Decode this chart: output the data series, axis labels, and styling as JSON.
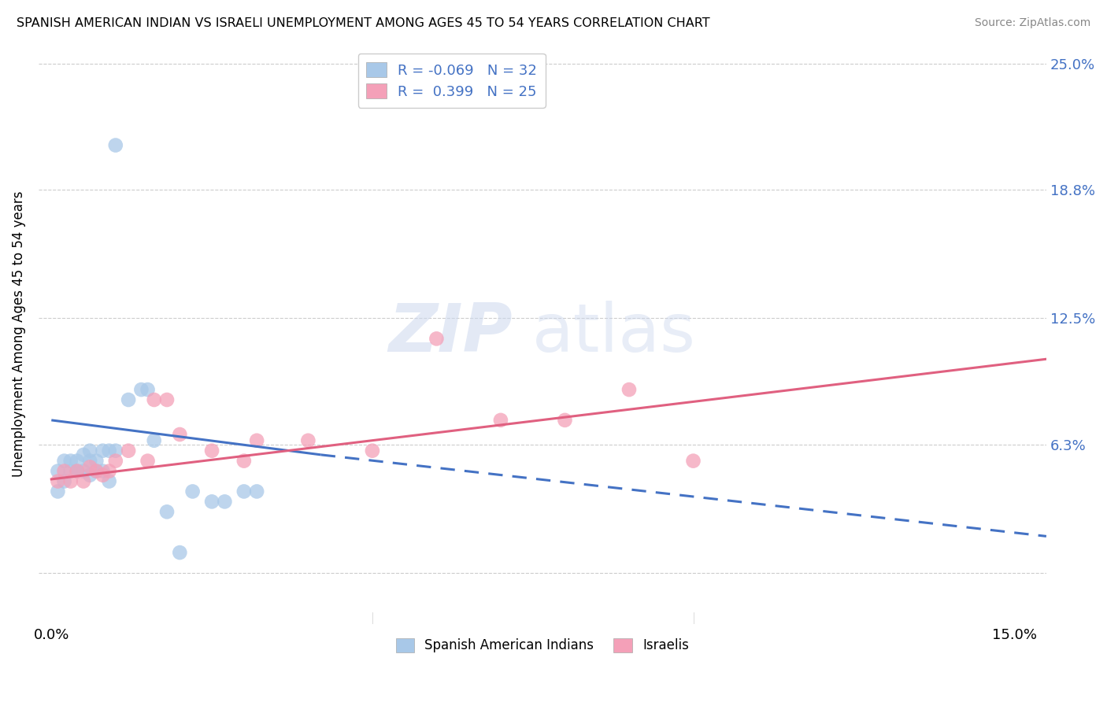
{
  "title": "SPANISH AMERICAN INDIAN VS ISRAELI UNEMPLOYMENT AMONG AGES 45 TO 54 YEARS CORRELATION CHART",
  "source": "Source: ZipAtlas.com",
  "ylabel": "Unemployment Among Ages 45 to 54 years",
  "xlim": [
    -0.002,
    0.155
  ],
  "ylim": [
    -0.025,
    0.26
  ],
  "ytick_labels": [
    "",
    "6.3%",
    "12.5%",
    "18.8%",
    "25.0%"
  ],
  "ytick_values": [
    0.0,
    0.063,
    0.125,
    0.188,
    0.25
  ],
  "r_blue": -0.069,
  "n_blue": 32,
  "r_pink": 0.399,
  "n_pink": 25,
  "blue_color": "#a8c8e8",
  "pink_color": "#f4a0b8",
  "blue_line_color": "#4472c4",
  "pink_line_color": "#e06080",
  "legend_label_blue": "Spanish American Indians",
  "legend_label_pink": "Israelis",
  "blue_scatter_size": 180,
  "pink_scatter_size": 180,
  "blue_x": [
    0.001,
    0.001,
    0.002,
    0.002,
    0.003,
    0.003,
    0.004,
    0.004,
    0.005,
    0.005,
    0.006,
    0.006,
    0.006,
    0.007,
    0.007,
    0.008,
    0.008,
    0.009,
    0.009,
    0.01,
    0.012,
    0.014,
    0.015,
    0.016,
    0.018,
    0.02,
    0.022,
    0.025,
    0.027,
    0.03,
    0.032,
    0.01
  ],
  "blue_y": [
    0.04,
    0.05,
    0.045,
    0.055,
    0.05,
    0.055,
    0.05,
    0.055,
    0.05,
    0.058,
    0.048,
    0.055,
    0.06,
    0.05,
    0.055,
    0.05,
    0.06,
    0.045,
    0.06,
    0.06,
    0.085,
    0.09,
    0.09,
    0.065,
    0.03,
    0.01,
    0.04,
    0.035,
    0.035,
    0.04,
    0.04,
    0.21
  ],
  "pink_x": [
    0.001,
    0.002,
    0.003,
    0.004,
    0.005,
    0.006,
    0.007,
    0.008,
    0.009,
    0.01,
    0.012,
    0.015,
    0.016,
    0.018,
    0.02,
    0.025,
    0.03,
    0.032,
    0.04,
    0.05,
    0.06,
    0.07,
    0.08,
    0.09,
    0.1
  ],
  "pink_y": [
    0.045,
    0.05,
    0.045,
    0.05,
    0.045,
    0.052,
    0.05,
    0.048,
    0.05,
    0.055,
    0.06,
    0.055,
    0.085,
    0.085,
    0.068,
    0.06,
    0.055,
    0.065,
    0.065,
    0.06,
    0.115,
    0.075,
    0.075,
    0.09,
    0.055
  ],
  "blue_trend_x_start": 0.0,
  "blue_trend_x_solid_end": 0.042,
  "blue_trend_x_dash_end": 0.155,
  "blue_trend_y_start": 0.075,
  "blue_trend_y_solid_end": 0.058,
  "blue_trend_y_dash_end": 0.018,
  "pink_trend_x_start": 0.0,
  "pink_trend_x_end": 0.155,
  "pink_trend_y_start": 0.046,
  "pink_trend_y_end": 0.105
}
